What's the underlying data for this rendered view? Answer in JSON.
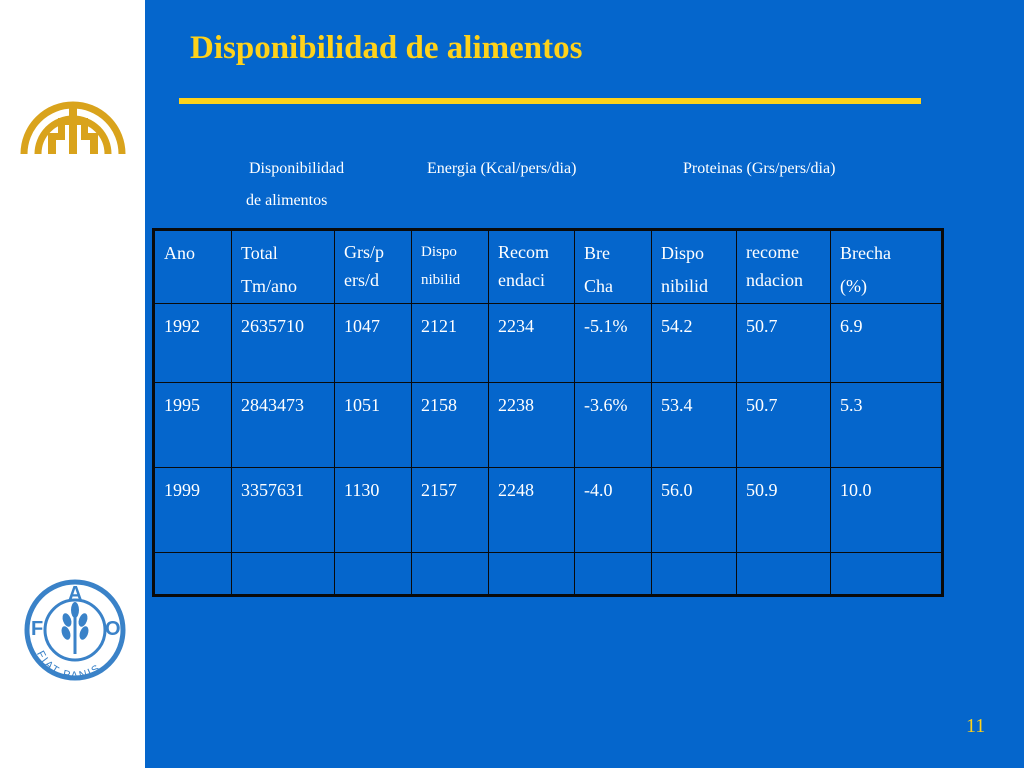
{
  "slide": {
    "title": "Disponibilidad de alimentos",
    "page_number": "11",
    "colors": {
      "background": "#0566cc",
      "accent": "#ffd21a",
      "sidebar": "#ffffff"
    }
  },
  "group_headers": {
    "disponibilidad_line1": "Disponibilidad",
    "disponibilidad_line2": "de alimentos",
    "energia": "Energia (Kcal/pers/dia)",
    "proteinas": "Proteinas (Grs/pers/dia)"
  },
  "table": {
    "columns": [
      [
        "Ano"
      ],
      [
        "Total",
        "Tm/ano"
      ],
      [
        "Grs/p",
        "ers/d"
      ],
      [
        "Dispo",
        "nibilid"
      ],
      [
        "Recom",
        "endaci"
      ],
      [
        "Bre",
        "Cha"
      ],
      [
        "Dispo",
        "nibilid"
      ],
      [
        "recome",
        "ndacion"
      ],
      [
        "Brecha",
        "(%)"
      ]
    ],
    "rows": [
      [
        "1992",
        "2635710",
        "1047",
        "2121",
        "2234",
        "-5.1%",
        "54.2",
        "50.7",
        "6.9"
      ],
      [
        "1995",
        "2843473",
        "1051",
        "2158",
        "2238",
        "-3.6%",
        "53.4",
        "50.7",
        "5.3"
      ],
      [
        "1999",
        "3357631",
        "1130",
        "2157",
        "2248",
        "-4.0",
        "56.0",
        "50.9",
        "10.0"
      ],
      [
        "",
        "",
        "",
        "",
        "",
        "",
        "",
        "",
        ""
      ]
    ]
  },
  "logos": {
    "top": "andean-community-logo",
    "bottom": {
      "icon": "fao-logo",
      "letters": [
        "F",
        "A",
        "O"
      ],
      "motto": "FIAT PANIS"
    }
  }
}
